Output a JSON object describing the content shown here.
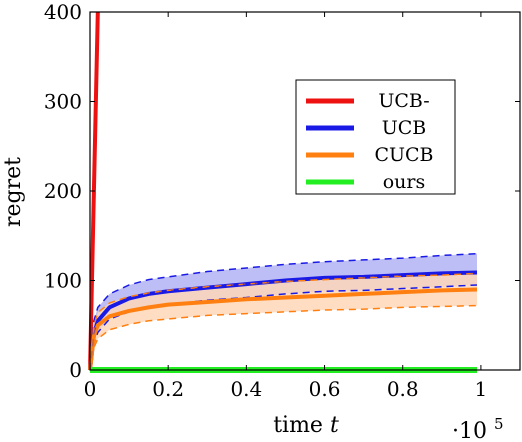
{
  "chart_data": {
    "type": "line",
    "xlabel": "time",
    "xlabel_var": "t",
    "ylabel": "regret",
    "x_scale_label": "·10",
    "x_scale_exp": "5",
    "xlim": [
      0,
      1.1
    ],
    "ylim": [
      0,
      400
    ],
    "x_ticks": [
      "0",
      "0.2",
      "0.4",
      "0.6",
      "0.8",
      "1"
    ],
    "y_ticks": [
      "0",
      "100",
      "200",
      "300",
      "400"
    ],
    "x_tick_values": [
      0,
      0.2,
      0.4,
      0.6,
      0.8,
      1.0
    ],
    "y_tick_values": [
      0,
      100,
      200,
      300,
      400
    ],
    "legend_position": "right",
    "series": [
      {
        "name": "UCB-",
        "color": "#ee1111",
        "x": [
          0,
          0.02
        ],
        "y": [
          0,
          400
        ]
      },
      {
        "name": "UCB",
        "color": "#1a1ae6",
        "band_color": "#b3b3f5",
        "x": [
          0,
          0.01,
          0.02,
          0.05,
          0.1,
          0.15,
          0.2,
          0.3,
          0.4,
          0.5,
          0.6,
          0.7,
          0.8,
          0.9,
          0.99
        ],
        "y": [
          0,
          40,
          55,
          70,
          80,
          85,
          88,
          92,
          96,
          100,
          103,
          104,
          106,
          108,
          109
        ],
        "upper": [
          0,
          55,
          70,
          85,
          95,
          101,
          104,
          110,
          114,
          118,
          121,
          123,
          125,
          128,
          130
        ],
        "lower": [
          0,
          30,
          42,
          57,
          65,
          70,
          73,
          78,
          81,
          85,
          88,
          89,
          91,
          93,
          95
        ]
      },
      {
        "name": "CUCB",
        "color": "#ff8010",
        "band_color": "#ffd7b8",
        "x": [
          0,
          0.01,
          0.02,
          0.05,
          0.1,
          0.15,
          0.2,
          0.3,
          0.4,
          0.5,
          0.6,
          0.7,
          0.8,
          0.9,
          0.99
        ],
        "y": [
          0,
          38,
          50,
          60,
          66,
          70,
          73,
          76,
          79,
          81,
          83,
          85,
          87,
          89,
          90
        ],
        "upper": [
          0,
          50,
          64,
          75,
          82,
          86,
          89,
          93,
          96,
          99,
          101,
          103,
          105,
          106,
          108
        ],
        "lower": [
          0,
          25,
          35,
          45,
          51,
          55,
          57,
          61,
          63,
          65,
          67,
          68,
          70,
          71,
          72
        ]
      },
      {
        "name": "ours",
        "color": "#22ee22",
        "x": [
          0,
          0.99
        ],
        "y": [
          0,
          0
        ]
      }
    ]
  }
}
